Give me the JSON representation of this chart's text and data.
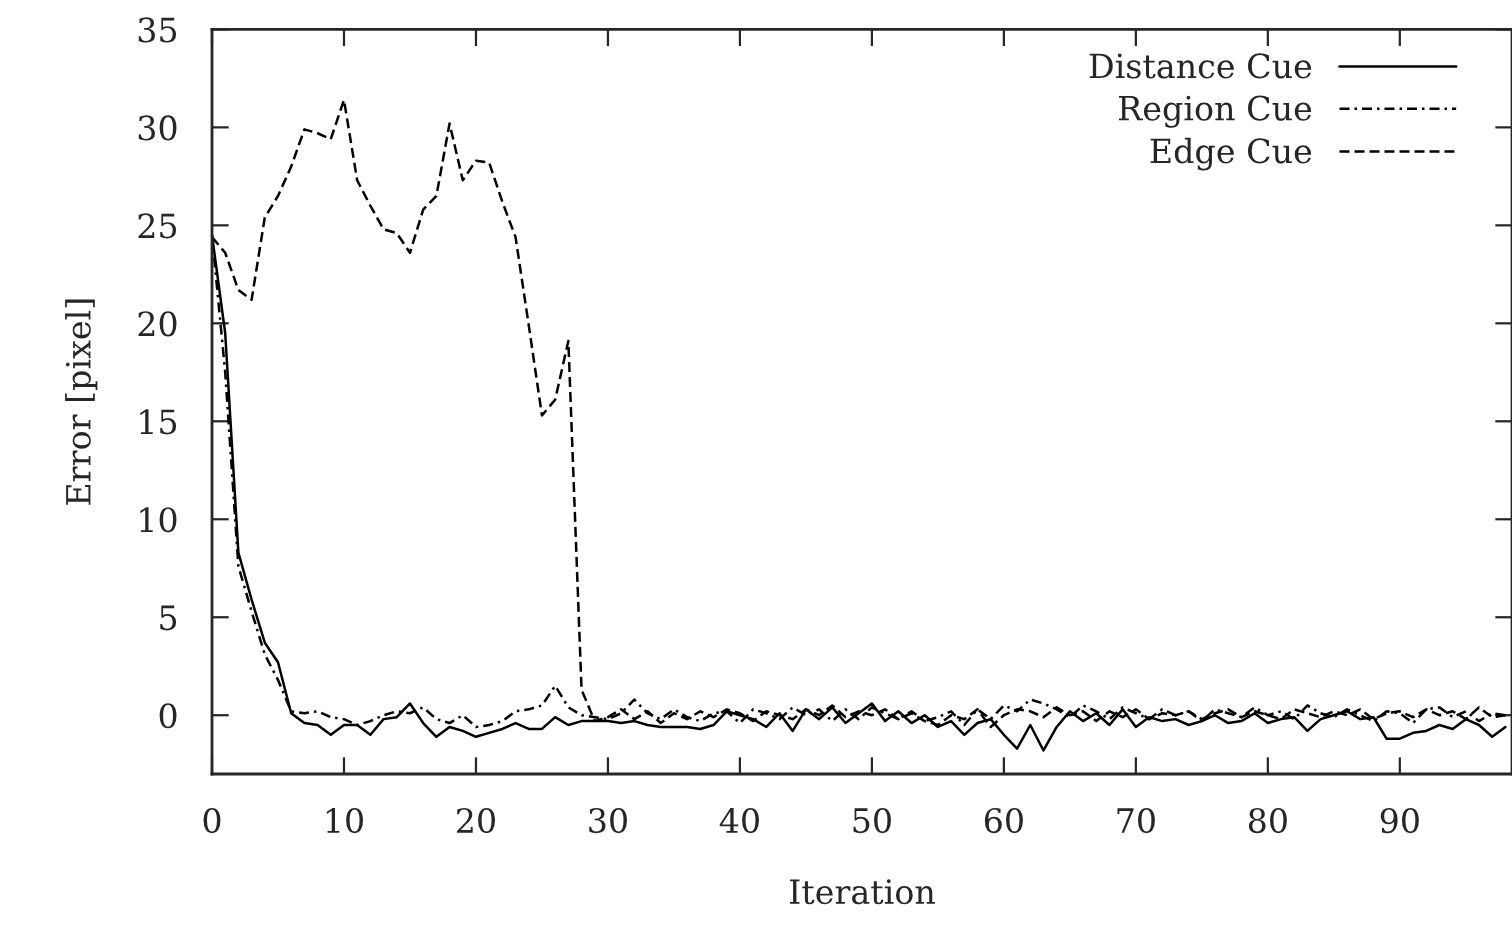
{
  "chart_data": {
    "type": "line",
    "xlabel": "Iteration",
    "ylabel": "Error [pixel]",
    "x": [
      0,
      1,
      2,
      3,
      4,
      5,
      6,
      7,
      8,
      9,
      10,
      11,
      12,
      13,
      14,
      15,
      16,
      17,
      18,
      19,
      20,
      21,
      22,
      23,
      24,
      25,
      26,
      27,
      28,
      29,
      30,
      31,
      32,
      33,
      34,
      35,
      36,
      37,
      38,
      39,
      40,
      41,
      42,
      43,
      44,
      45,
      46,
      47,
      48,
      49,
      50,
      51,
      52,
      53,
      54,
      55,
      56,
      57,
      58,
      59,
      60,
      61,
      62,
      63,
      64,
      65,
      66,
      67,
      68,
      69,
      70,
      71,
      72,
      73,
      74,
      75,
      76,
      77,
      78,
      79,
      80,
      81,
      82,
      83,
      84,
      85,
      86,
      87,
      88,
      89,
      90,
      91,
      92,
      93,
      94,
      95,
      96,
      97,
      98
    ],
    "xlim": [
      0,
      98.5
    ],
    "xticks": [
      0,
      10,
      20,
      30,
      40,
      50,
      60,
      70,
      80,
      90
    ],
    "ylim": [
      -3,
      35
    ],
    "yticks": [
      0,
      5,
      10,
      15,
      20,
      25,
      30,
      35
    ],
    "grid": false,
    "legend": "top right",
    "marker": "none",
    "series": [
      {
        "name": "Distance Cue",
        "color": "#000000",
        "line_style": "solid",
        "values": [
          24.5,
          19.5,
          8.3,
          5.9,
          3.7,
          2.7,
          0.1,
          -0.4,
          -0.5,
          -1.0,
          -0.5,
          -0.5,
          -1.0,
          -0.2,
          -0.1,
          0.6,
          -0.4,
          -1.1,
          -0.6,
          -0.8,
          -1.1,
          -0.9,
          -0.7,
          -0.4,
          -0.7,
          -0.7,
          -0.1,
          -0.5,
          -0.3,
          -0.3,
          -0.3,
          -0.4,
          -0.3,
          -0.5,
          -0.6,
          -0.6,
          -0.6,
          -0.7,
          -0.5,
          0.2,
          0.0,
          -0.2,
          -0.6,
          0.1,
          -0.8,
          0.3,
          -0.2,
          0.4,
          -0.4,
          0.1,
          0.6,
          -0.3,
          0.2,
          -0.4,
          0.0,
          -0.6,
          -0.3,
          -1.0,
          -0.4,
          -0.2,
          -1.0,
          -1.7,
          -0.5,
          -1.8,
          -0.6,
          0.2,
          -0.3,
          0.1,
          -0.5,
          0.3,
          -0.6,
          -0.1,
          -0.3,
          -0.2,
          -0.5,
          -0.3,
          0.0,
          -0.4,
          -0.3,
          0.1,
          -0.4,
          -0.2,
          -0.1,
          -0.8,
          -0.2,
          0.0,
          0.2,
          -0.2,
          -0.1,
          -1.2,
          -1.2,
          -0.9,
          -0.8,
          -0.5,
          -0.7,
          -0.2,
          -0.5,
          -1.1,
          -0.6
        ]
      },
      {
        "name": "Region Cue",
        "color": "#000000",
        "line_style": "dashdot",
        "values": [
          24.5,
          17.5,
          7.6,
          5.3,
          3.1,
          1.8,
          0.2,
          0.1,
          0.2,
          -0.1,
          -0.2,
          -0.5,
          -0.3,
          0.0,
          0.2,
          0.1,
          0.4,
          -0.2,
          -0.4,
          0.0,
          -0.6,
          -0.5,
          -0.3,
          0.2,
          0.3,
          0.5,
          1.5,
          0.4,
          0.0,
          -0.1,
          -0.2,
          0.1,
          0.8,
          0.1,
          -0.2,
          0.3,
          -0.1,
          -0.3,
          0.1,
          0.2,
          -0.4,
          0.3,
          0.1,
          -0.2,
          0.4,
          0.0,
          0.3,
          -0.3,
          0.3,
          -0.2,
          0.4,
          0.1,
          -0.2,
          0.2,
          -0.3,
          -0.1,
          0.2,
          -0.5,
          0.3,
          -0.2,
          0.5,
          0.2,
          0.8,
          0.6,
          0.3,
          -0.1,
          0.5,
          0.2,
          -0.2,
          0.4,
          0.1,
          -0.2,
          0.3,
          0.0,
          0.2,
          -0.3,
          0.3,
          0.1,
          -0.1,
          0.4,
          0.0,
          0.2,
          -0.2,
          0.5,
          0.1,
          -0.1,
          0.3,
          0.0,
          -0.3,
          0.2,
          0.1,
          -0.4,
          0.3,
          0.4,
          -0.1,
          0.2,
          -0.3,
          0.1,
          0.0
        ]
      },
      {
        "name": "Edge Cue",
        "color": "#000000",
        "line_style": "dashed",
        "values": [
          24.4,
          23.6,
          21.7,
          21.2,
          25.4,
          26.5,
          28.0,
          29.9,
          29.7,
          29.4,
          31.4,
          27.3,
          26.0,
          24.8,
          24.6,
          23.6,
          25.8,
          26.5,
          30.2,
          27.3,
          28.3,
          28.2,
          26.2,
          24.4,
          19.9,
          15.3,
          16.1,
          19.1,
          1.3,
          -0.3,
          -0.1,
          0.3,
          -0.2,
          0.2,
          -0.4,
          0.1,
          -0.2,
          0.2,
          -0.1,
          0.3,
          0.1,
          -0.3,
          0.2,
          0.0,
          -0.2,
          0.3,
          0.0,
          0.5,
          -0.1,
          0.2,
          0.0,
          0.3,
          -0.2,
          0.1,
          -0.3,
          -0.5,
          0.0,
          -0.2,
          0.3,
          -0.6,
          0.0,
          0.3,
          0.2,
          -0.1,
          0.4,
          0.0,
          0.2,
          -0.3,
          0.2,
          -0.1,
          0.3,
          -0.2,
          0.1,
          0.0,
          0.2,
          -0.2,
          0.1,
          0.3,
          -0.1,
          0.2,
          0.0,
          -0.2,
          0.3,
          0.1,
          -0.1,
          0.2,
          0.0,
          0.3,
          -0.2,
          0.1,
          0.2,
          -0.1,
          0.3,
          0.0,
          0.2,
          -0.2,
          0.4,
          -0.1,
          0.0
        ]
      }
    ]
  }
}
